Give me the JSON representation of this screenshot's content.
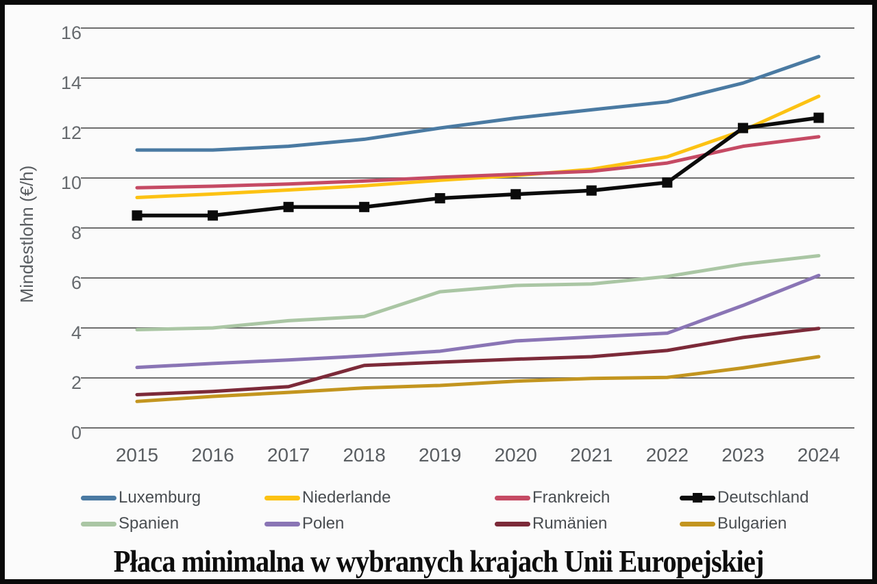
{
  "chart_data": {
    "type": "line",
    "title": "Płaca minimalna w wybranych krajach Unii Europejskiej",
    "ylabel": "Mindestlohn (€/h)",
    "xlabel": "",
    "x": [
      "2015",
      "2016",
      "2017",
      "2018",
      "2019",
      "2020",
      "2021",
      "2022",
      "2023",
      "2024"
    ],
    "yticks": [
      0,
      2,
      4,
      6,
      8,
      10,
      12,
      14,
      16
    ],
    "ylim": [
      0,
      16
    ],
    "grid": "horizontal-only",
    "legend_position": "bottom-two-rows",
    "series": [
      {
        "name": "Luxemburg",
        "color": "#4a7aa2",
        "marker": "none",
        "values": [
          11.12,
          11.12,
          11.27,
          11.55,
          12.0,
          12.4,
          12.73,
          13.05,
          13.8,
          14.86
        ]
      },
      {
        "name": "Niederlande",
        "color": "#fcc213",
        "marker": "none",
        "values": [
          9.22,
          9.36,
          9.52,
          9.69,
          9.91,
          10.1,
          10.35,
          10.85,
          11.9,
          13.27
        ]
      },
      {
        "name": "Frankreich",
        "color": "#c54a64",
        "marker": "none",
        "values": [
          9.61,
          9.67,
          9.76,
          9.88,
          10.03,
          10.15,
          10.27,
          10.6,
          11.27,
          11.65
        ]
      },
      {
        "name": "Deutschland",
        "color": "#0b0b0b",
        "marker": "square",
        "values": [
          8.5,
          8.5,
          8.84,
          8.84,
          9.19,
          9.35,
          9.5,
          9.82,
          12.0,
          12.41
        ]
      },
      {
        "name": "Spanien",
        "color": "#aac6a4",
        "marker": "none",
        "values": [
          3.93,
          4.0,
          4.29,
          4.46,
          5.45,
          5.7,
          5.76,
          6.06,
          6.55,
          6.89
        ]
      },
      {
        "name": "Polen",
        "color": "#8a75b5",
        "marker": "none",
        "values": [
          2.42,
          2.58,
          2.72,
          2.88,
          3.07,
          3.48,
          3.64,
          3.79,
          4.9,
          6.1
        ]
      },
      {
        "name": "Rumänien",
        "color": "#7c2a39",
        "marker": "none",
        "values": [
          1.33,
          1.46,
          1.65,
          2.5,
          2.63,
          2.75,
          2.85,
          3.1,
          3.62,
          3.98
        ]
      },
      {
        "name": "Bulgarien",
        "color": "#c3951f",
        "marker": "none",
        "values": [
          1.06,
          1.26,
          1.42,
          1.6,
          1.7,
          1.87,
          1.98,
          2.02,
          2.4,
          2.85
        ]
      }
    ],
    "style": {
      "grid_color": "#6e6e6e",
      "tick_text_color": "#5d6165",
      "background": "#fbfbfb",
      "border_color": "#0a0a0a",
      "line_width": 5,
      "deutschland_marker_size": 15
    }
  }
}
